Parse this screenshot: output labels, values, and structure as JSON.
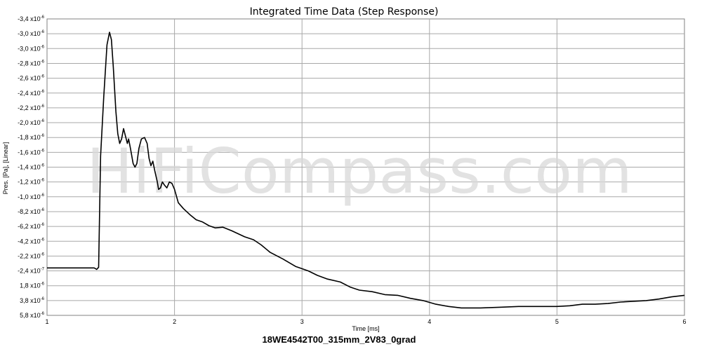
{
  "chart_data": {
    "type": "line",
    "title": "Integrated Time Data (Step Response)",
    "subtitle": "18WE4542T00_315mm_2V83_0grad",
    "xlabel": "Time [ms]",
    "ylabel": "Pres. [Pa], [Linear]",
    "watermark": "HiFiCompass.com",
    "xlim": [
      1,
      6
    ],
    "x_ticks": [
      {
        "value": 1,
        "label": "1"
      },
      {
        "value": 2,
        "label": "2"
      },
      {
        "value": 3,
        "label": "3"
      },
      {
        "value": 4,
        "label": "4"
      },
      {
        "value": 5,
        "label": "5"
      },
      {
        "value": 6,
        "label": "6"
      }
    ],
    "y_ticks": [
      {
        "mant": "-3,4",
        "exp": "-6"
      },
      {
        "mant": "-3,0",
        "exp": "-6"
      },
      {
        "mant": "-3,0",
        "exp": "-6"
      },
      {
        "mant": "-2,8",
        "exp": "-6"
      },
      {
        "mant": "-2,6",
        "exp": "-6"
      },
      {
        "mant": "-2,4",
        "exp": "-6"
      },
      {
        "mant": "-2,2",
        "exp": "-6"
      },
      {
        "mant": "-2,0",
        "exp": "-6"
      },
      {
        "mant": "-1,8",
        "exp": "-6"
      },
      {
        "mant": "-1,6",
        "exp": "-6"
      },
      {
        "mant": "-1,4",
        "exp": "-6"
      },
      {
        "mant": "-1,2",
        "exp": "-6"
      },
      {
        "mant": "-1,0",
        "exp": "-6"
      },
      {
        "mant": "-8,2",
        "exp": "-6"
      },
      {
        "mant": "-6,2",
        "exp": "-6"
      },
      {
        "mant": "-4,2",
        "exp": "-6"
      },
      {
        "mant": "-2,2",
        "exp": "-6"
      },
      {
        "mant": "-2,4",
        "exp": "-7"
      },
      {
        "mant": "1,8",
        "exp": "-6"
      },
      {
        "mant": "3,8",
        "exp": "-6"
      },
      {
        "mant": "5,8",
        "exp": "-6"
      }
    ],
    "ylim": [
      -3.6e-06,
      4e-07
    ],
    "grid": true,
    "series": [
      {
        "color": "#000000",
        "points": [
          [
            1.0,
            -2.4e-07
          ],
          [
            1.3,
            -2.4e-07
          ],
          [
            1.37,
            -2.4e-07
          ],
          [
            1.39,
            -2.2e-07
          ],
          [
            1.405,
            -2.5e-07
          ],
          [
            1.42,
            -1.75e-06
          ],
          [
            1.445,
            -2.55e-06
          ],
          [
            1.47,
            -3.25e-06
          ],
          [
            1.49,
            -3.42e-06
          ],
          [
            1.505,
            -3.32e-06
          ],
          [
            1.52,
            -2.95e-06
          ],
          [
            1.54,
            -2.35e-06
          ],
          [
            1.555,
            -2.05e-06
          ],
          [
            1.57,
            -1.92e-06
          ],
          [
            1.585,
            -1.98e-06
          ],
          [
            1.6,
            -2.12e-06
          ],
          [
            1.615,
            -2.02e-06
          ],
          [
            1.63,
            -1.92e-06
          ],
          [
            1.64,
            -1.98e-06
          ],
          [
            1.655,
            -1.85e-06
          ],
          [
            1.675,
            -1.65e-06
          ],
          [
            1.69,
            -1.6e-06
          ],
          [
            1.705,
            -1.65e-06
          ],
          [
            1.72,
            -1.85e-06
          ],
          [
            1.74,
            -1.98e-06
          ],
          [
            1.765,
            -2e-06
          ],
          [
            1.785,
            -1.92e-06
          ],
          [
            1.8,
            -1.72e-06
          ],
          [
            1.815,
            -1.62e-06
          ],
          [
            1.83,
            -1.68e-06
          ],
          [
            1.845,
            -1.55e-06
          ],
          [
            1.865,
            -1.4e-06
          ],
          [
            1.875,
            -1.3e-06
          ],
          [
            1.89,
            -1.32e-06
          ],
          [
            1.905,
            -1.4e-06
          ],
          [
            1.92,
            -1.36e-06
          ],
          [
            1.94,
            -1.32e-06
          ],
          [
            1.96,
            -1.4e-06
          ],
          [
            1.98,
            -1.38e-06
          ],
          [
            2.0,
            -1.3e-06
          ],
          [
            2.03,
            -1.12e-06
          ],
          [
            2.07,
            -1.04e-06
          ],
          [
            2.12,
            -9.6e-07
          ],
          [
            2.17,
            -8.9e-07
          ],
          [
            2.22,
            -8.6e-07
          ],
          [
            2.27,
            -8.1e-07
          ],
          [
            2.32,
            -7.8e-07
          ],
          [
            2.38,
            -7.9e-07
          ],
          [
            2.45,
            -7.4e-07
          ],
          [
            2.55,
            -6.6e-07
          ],
          [
            2.62,
            -6.2e-07
          ],
          [
            2.68,
            -5.5e-07
          ],
          [
            2.75,
            -4.5e-07
          ],
          [
            2.85,
            -3.6e-07
          ],
          [
            2.95,
            -2.6e-07
          ],
          [
            3.05,
            -2e-07
          ],
          [
            3.12,
            -1.4e-07
          ],
          [
            3.2,
            -9e-08
          ],
          [
            3.3,
            -5e-08
          ],
          [
            3.38,
            2e-08
          ],
          [
            3.45,
            6e-08
          ],
          [
            3.55,
            8e-08
          ],
          [
            3.65,
            1.2e-07
          ],
          [
            3.75,
            1.3e-07
          ],
          [
            3.85,
            1.7e-07
          ],
          [
            3.95,
            2e-07
          ],
          [
            4.05,
            2.5e-07
          ],
          [
            4.15,
            2.8e-07
          ],
          [
            4.25,
            3e-07
          ],
          [
            4.4,
            3e-07
          ],
          [
            4.55,
            2.9e-07
          ],
          [
            4.7,
            2.8e-07
          ],
          [
            4.85,
            2.8e-07
          ],
          [
            5.0,
            2.8e-07
          ],
          [
            5.1,
            2.7e-07
          ],
          [
            5.2,
            2.5e-07
          ],
          [
            5.3,
            2.5e-07
          ],
          [
            5.4,
            2.4e-07
          ],
          [
            5.5,
            2.2e-07
          ],
          [
            5.6,
            2.1e-07
          ],
          [
            5.7,
            2e-07
          ],
          [
            5.8,
            1.8e-07
          ],
          [
            5.9,
            1.5e-07
          ],
          [
            6.0,
            1.3e-07
          ]
        ]
      }
    ]
  }
}
